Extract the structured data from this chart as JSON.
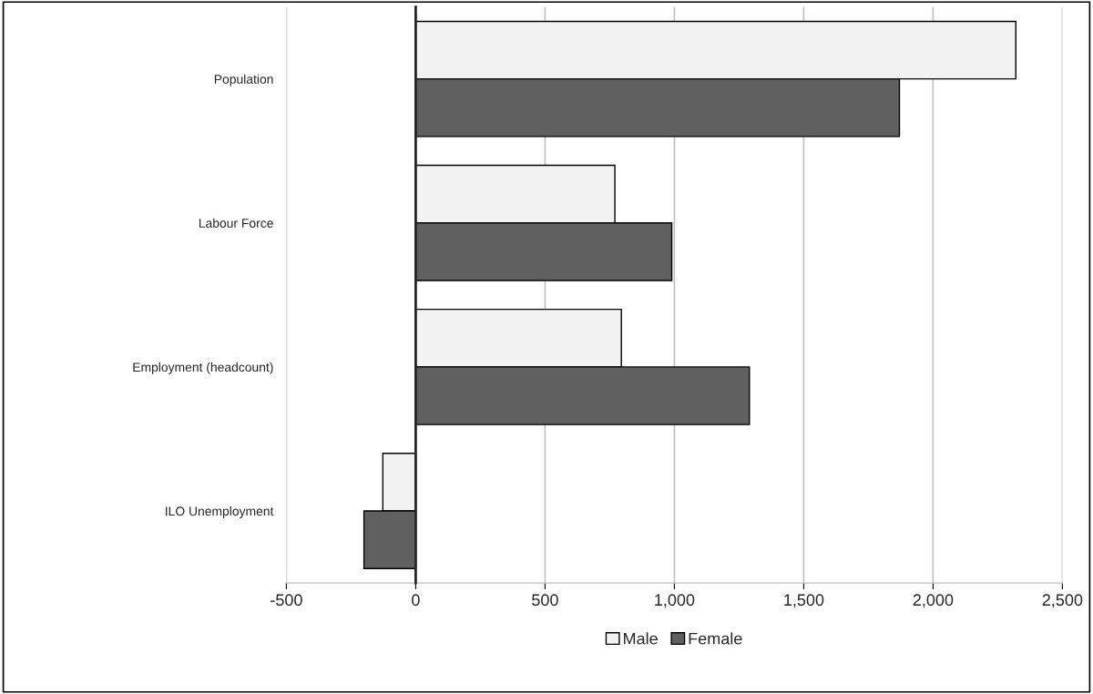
{
  "chart_data": {
    "type": "bar",
    "orientation": "horizontal",
    "categories": [
      "Population",
      "Labour Force",
      "Employment (headcount)",
      "ILO Unemployment"
    ],
    "series": [
      {
        "name": "Male",
        "color": "#f2f2f2",
        "values": [
          2320,
          770,
          795,
          -127
        ]
      },
      {
        "name": "Female",
        "color": "#606060",
        "values": [
          1870,
          990,
          1290,
          -200
        ]
      }
    ],
    "xlim": [
      -500,
      2500
    ],
    "xticks": [
      -500,
      0,
      {
        "value": 500,
        "label": "500"
      },
      {
        "value": 1000,
        "label": "1,000"
      },
      {
        "value": 1500,
        "label": "1,500"
      },
      {
        "value": 2000,
        "label": "2,000"
      },
      {
        "value": 2500,
        "label": "2,500"
      }
    ],
    "grid": "x",
    "legend": "bottom"
  }
}
